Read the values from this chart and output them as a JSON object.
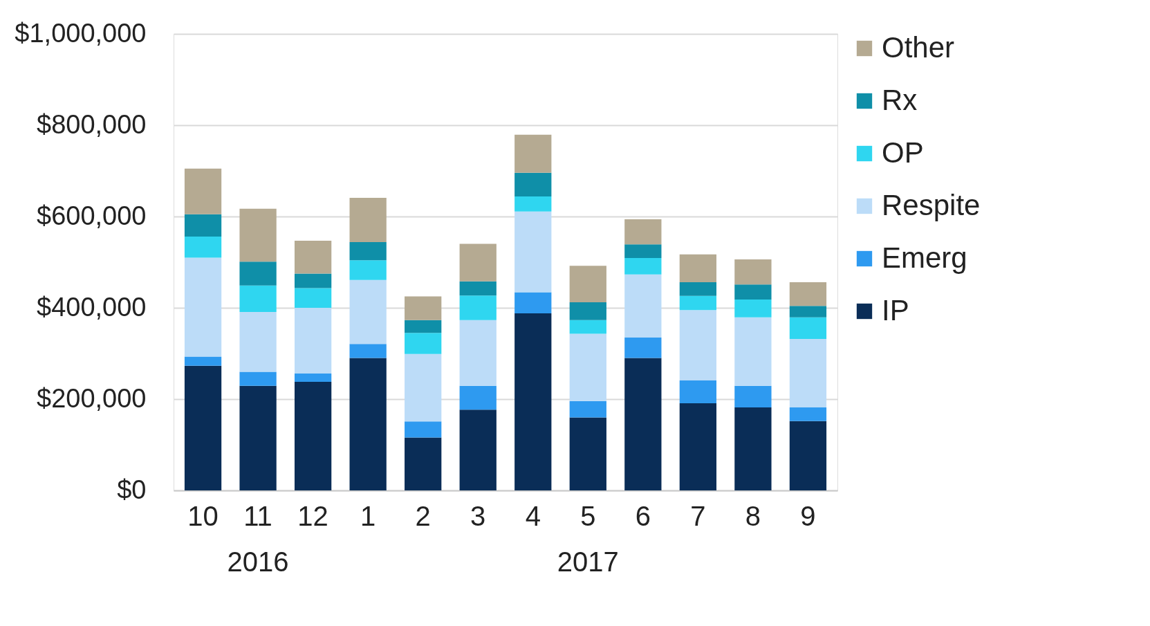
{
  "chart_data": {
    "type": "bar",
    "stacked": true,
    "categories": [
      "10",
      "11",
      "12",
      "1",
      "2",
      "3",
      "4",
      "5",
      "6",
      "7",
      "8",
      "9"
    ],
    "series": [
      {
        "name": "IP",
        "color": "#0a2d57",
        "values": [
          273000,
          229000,
          238000,
          290000,
          116000,
          177000,
          388000,
          160000,
          290000,
          191000,
          182000,
          152000
        ]
      },
      {
        "name": "Emerg",
        "color": "#2e9af0",
        "values": [
          20000,
          31000,
          18000,
          31000,
          35000,
          52000,
          46000,
          36000,
          45000,
          50000,
          47000,
          30000
        ]
      },
      {
        "name": "Respite",
        "color": "#bcdcf8",
        "values": [
          217000,
          131000,
          144000,
          140000,
          148000,
          144000,
          177000,
          147000,
          138000,
          154000,
          150000,
          150000
        ]
      },
      {
        "name": "OP",
        "color": "#2fd6f0",
        "values": [
          46000,
          58000,
          43000,
          43000,
          46000,
          54000,
          33000,
          30000,
          36000,
          31000,
          39000,
          47000
        ]
      },
      {
        "name": "Rx",
        "color": "#0f8fa8",
        "values": [
          49000,
          52000,
          32000,
          40000,
          28000,
          31000,
          52000,
          39000,
          30000,
          30000,
          33000,
          25000
        ]
      },
      {
        "name": "Other",
        "color": "#b5aa92",
        "values": [
          100000,
          116000,
          72000,
          97000,
          52000,
          82000,
          83000,
          80000,
          55000,
          61000,
          55000,
          52000
        ]
      }
    ],
    "ylim": [
      0,
      1000000
    ],
    "yticks": [
      {
        "value": 0,
        "label": "$0"
      },
      {
        "value": 200000,
        "label": "$200,000"
      },
      {
        "value": 400000,
        "label": "$400,000"
      },
      {
        "value": 600000,
        "label": "$600,000"
      },
      {
        "value": 800000,
        "label": "$800,000"
      },
      {
        "value": 1000000,
        "label": "$1,000,000"
      }
    ],
    "grid": "y",
    "legend": "right",
    "annotations": [
      "2016",
      "2017"
    ]
  }
}
